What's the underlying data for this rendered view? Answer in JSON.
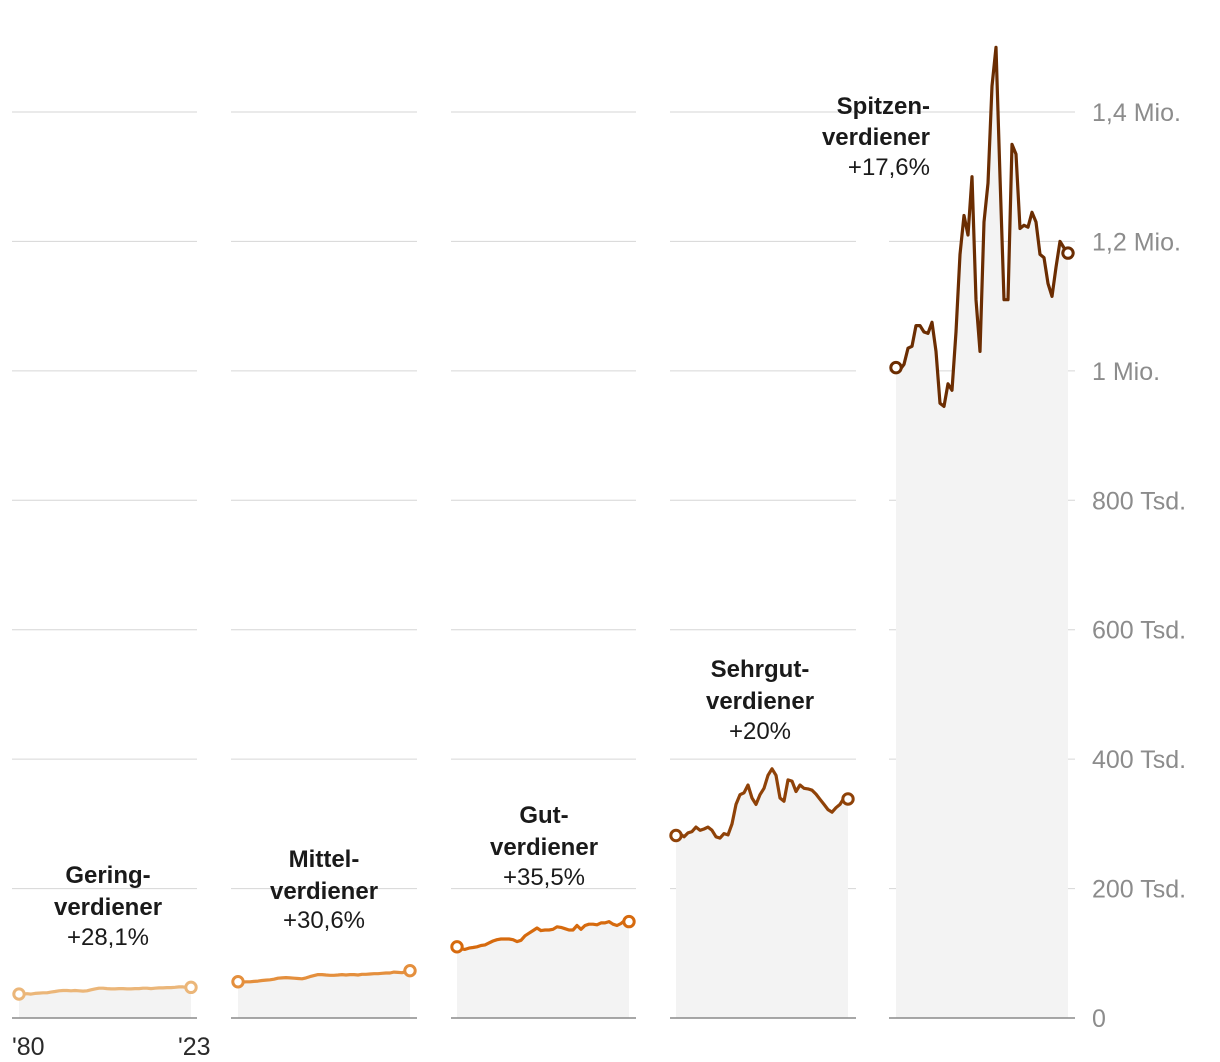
{
  "chart_data": {
    "type": "line",
    "ylim": [
      0,
      1400000
    ],
    "y_ticks": [
      {
        "value": 0,
        "label": "0"
      },
      {
        "value": 200000,
        "label": "200 Tsd."
      },
      {
        "value": 400000,
        "label": "400 Tsd."
      },
      {
        "value": 600000,
        "label": "600 Tsd."
      },
      {
        "value": 800000,
        "label": "800 Tsd."
      },
      {
        "value": 1000000,
        "label": "1 Mio."
      },
      {
        "value": 1200000,
        "label": "1,2 Mio."
      },
      {
        "value": 1400000,
        "label": "1,4 Mio."
      }
    ],
    "x_range": [
      1980,
      2023
    ],
    "x_tick_labels": [
      "'80",
      "'23"
    ],
    "grid": true,
    "panels": [
      {
        "title_line1": "Gering-",
        "title_line2": "verdiener",
        "change": "+28,1%",
        "color": "#ebb679",
        "values": [
          37000,
          37000,
          37500,
          37000,
          38000,
          38500,
          39000,
          39000,
          40000,
          41000,
          42000,
          42500,
          42500,
          42000,
          42500,
          42000,
          41500,
          42000,
          43500,
          45000,
          46000,
          46000,
          45500,
          45000,
          45000,
          45500,
          45500,
          45000,
          45000,
          45500,
          45500,
          46000,
          46000,
          45500,
          46000,
          46500,
          46500,
          47000,
          47000,
          47500,
          48000,
          48000,
          47000,
          47400
        ]
      },
      {
        "title_line1": "Mittel-",
        "title_line2": "verdiener",
        "change": "+30,6%",
        "color": "#e48f3d",
        "values": [
          56000,
          55500,
          56000,
          56000,
          56500,
          57000,
          58000,
          58500,
          59000,
          60000,
          61500,
          62000,
          62500,
          62000,
          61500,
          61000,
          60500,
          62000,
          64000,
          65500,
          67000,
          67000,
          66500,
          66000,
          66000,
          66500,
          67000,
          66500,
          67000,
          67000,
          66500,
          67500,
          67500,
          68000,
          68500,
          68500,
          69000,
          69500,
          69500,
          71000,
          70500,
          70000,
          71500,
          73100
        ]
      },
      {
        "title_line1": "Gut-",
        "title_line2": "verdiener",
        "change": "+35,5%",
        "color": "#d66a0e",
        "values": [
          110000,
          107000,
          106000,
          108000,
          109000,
          110000,
          112000,
          113000,
          116000,
          119000,
          121000,
          122000,
          122000,
          122000,
          121000,
          118000,
          120000,
          127000,
          131000,
          135000,
          139000,
          135000,
          136000,
          136000,
          137000,
          141000,
          140000,
          138000,
          136000,
          136000,
          143000,
          137000,
          143000,
          145000,
          145000,
          144000,
          147000,
          147000,
          149000,
          145000,
          143000,
          146000,
          151000,
          149000
        ]
      },
      {
        "title_line1": "Sehrgut-",
        "title_line2": "verdiener",
        "change": "+20%",
        "color": "#8f4208",
        "values": [
          282000,
          285000,
          280000,
          286000,
          288000,
          295000,
          290000,
          292000,
          295000,
          290000,
          280000,
          278000,
          285000,
          283000,
          300000,
          330000,
          345000,
          348000,
          360000,
          340000,
          330000,
          345000,
          355000,
          375000,
          385000,
          375000,
          340000,
          335000,
          368000,
          366000,
          350000,
          360000,
          355000,
          354000,
          352000,
          346000,
          338000,
          330000,
          322000,
          318000,
          325000,
          330000,
          340000,
          338400
        ]
      },
      {
        "title_line1": "Spitzen-",
        "title_line2": "verdiener",
        "change": "+17,6%",
        "color": "#6b2d02",
        "values": [
          1005000,
          1002000,
          1010000,
          1035000,
          1038000,
          1070000,
          1070000,
          1060000,
          1058000,
          1075000,
          1030000,
          950000,
          945000,
          980000,
          970000,
          1060000,
          1180000,
          1240000,
          1210000,
          1300000,
          1110000,
          1030000,
          1230000,
          1290000,
          1440000,
          1500000,
          1300000,
          1110000,
          1110000,
          1350000,
          1335000,
          1220000,
          1225000,
          1222000,
          1245000,
          1230000,
          1180000,
          1175000,
          1135000,
          1115000,
          1160000,
          1200000,
          1190000,
          1182000
        ]
      }
    ]
  }
}
